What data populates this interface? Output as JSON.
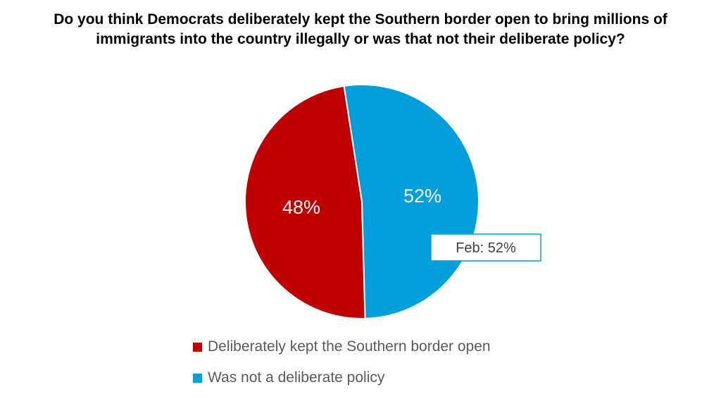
{
  "chart_data": {
    "type": "pie",
    "title_lines": [
      "Do you think Democrats deliberately kept the Southern border open to bring millions of",
      "immigrants into the country illegally or was that not their deliberate policy?"
    ],
    "slices": [
      {
        "label": "Deliberately kept the Southern border open",
        "value": 48,
        "display": "48%",
        "color": "#c00000"
      },
      {
        "label": "Was not a deliberate policy",
        "value": 52,
        "display": "52%",
        "color": "#009fdb"
      }
    ],
    "annotation": "Feb: 52%",
    "legend_position": "bottom"
  }
}
